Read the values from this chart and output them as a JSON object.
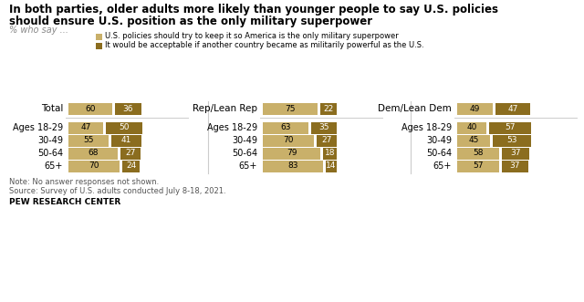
{
  "title_line1": "In both parties, older adults more likely than younger people to say U.S. policies",
  "title_line2": "should ensure U.S. position as the only military superpower",
  "subtitle": "% who say ...",
  "legend": [
    "U.S. policies should try to keep it so America is the only military superpower",
    "It would be acceptable if another country became as militarily powerful as the U.S."
  ],
  "color_light": "#c9b06a",
  "color_dark": "#8b6d1f",
  "total_data": [
    {
      "name": "Total",
      "val1": 60,
      "val2": 36
    },
    {
      "name": "Ages 18-29",
      "val1": 47,
      "val2": 50
    },
    {
      "name": "30-49",
      "val1": 55,
      "val2": 41
    },
    {
      "name": "50-64",
      "val1": 68,
      "val2": 27
    },
    {
      "name": "65+",
      "val1": 70,
      "val2": 24
    }
  ],
  "rep_data": [
    {
      "name": "Rep/Lean Rep",
      "val1": 75,
      "val2": 22
    },
    {
      "name": "Ages 18-29",
      "val1": 63,
      "val2": 35
    },
    {
      "name": "30-49",
      "val1": 70,
      "val2": 27
    },
    {
      "name": "50-64",
      "val1": 79,
      "val2": 18
    },
    {
      "name": "65+",
      "val1": 83,
      "val2": 14
    }
  ],
  "dem_data": [
    {
      "name": "Dem/Lean Dem",
      "val1": 49,
      "val2": 47
    },
    {
      "name": "Ages 18-29",
      "val1": 40,
      "val2": 57
    },
    {
      "name": "30-49",
      "val1": 45,
      "val2": 53
    },
    {
      "name": "50-64",
      "val1": 58,
      "val2": 37
    },
    {
      "name": "65+",
      "val1": 57,
      "val2": 37
    }
  ],
  "note": "Note: No answer responses not shown.",
  "source": "Source: Survey of U.S. adults conducted July 8-18, 2021.",
  "branding": "PEW RESEARCH CENTER",
  "background_color": "#ffffff"
}
